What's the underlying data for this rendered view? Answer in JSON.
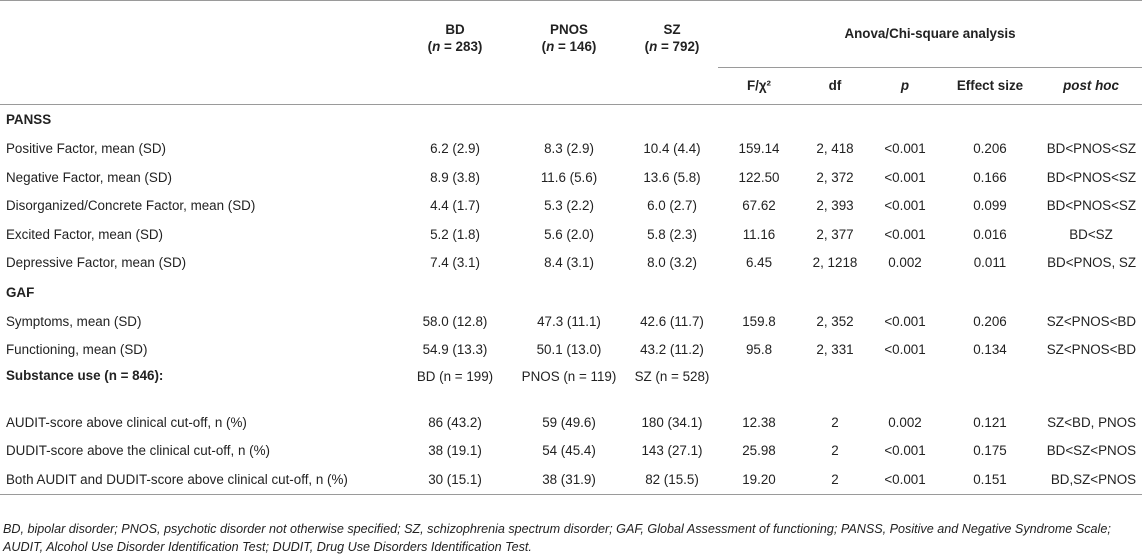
{
  "header": {
    "groups": [
      {
        "name": "BD",
        "n_label": "n",
        "n_value": " = 283)"
      },
      {
        "name": "PNOS",
        "n_label": "n",
        "n_value": " = 146)"
      },
      {
        "name": "SZ",
        "n_label": "n",
        "n_value": " = 792)"
      }
    ],
    "analysis_title": "Anova/Chi-square analysis",
    "subcols": [
      "F/χ²",
      "df",
      "p",
      "Effect size",
      "post hoc"
    ]
  },
  "sections": {
    "panss": "PANSS",
    "gaf": "GAF",
    "substance": "Substance use (n = 846):"
  },
  "panss_rows": [
    {
      "label": "Positive Factor, mean (SD)",
      "bd": "6.2 (2.9)",
      "pnos": "8.3 (2.9)",
      "sz": "10.4 (4.4)",
      "f": "159.14",
      "df": "2, 418",
      "p": "<0.001",
      "es": "0.206",
      "ph": "BD<PNOS<SZ"
    },
    {
      "label": "Negative Factor, mean (SD)",
      "bd": "8.9 (3.8)",
      "pnos": "11.6 (5.6)",
      "sz": "13.6 (5.8)",
      "f": "122.50",
      "df": "2, 372",
      "p": "<0.001",
      "es": "0.166",
      "ph": "BD<PNOS<SZ"
    },
    {
      "label": "Disorganized/Concrete Factor, mean (SD)",
      "bd": "4.4 (1.7)",
      "pnos": "5.3 (2.2)",
      "sz": "6.0 (2.7)",
      "f": "67.62",
      "df": "2, 393",
      "p": "<0.001",
      "es": "0.099",
      "ph": "BD<PNOS<SZ"
    },
    {
      "label": "Excited Factor, mean (SD)",
      "bd": "5.2 (1.8)",
      "pnos": "5.6 (2.0)",
      "sz": "5.8 (2.3)",
      "f": "11.16",
      "df": "2, 377",
      "p": "<0.001",
      "es": "0.016",
      "ph": "BD<SZ"
    },
    {
      "label": "Depressive Factor, mean (SD)",
      "bd": "7.4 (3.1)",
      "pnos": "8.4 (3.1)",
      "sz": "8.0 (3.2)",
      "f": "6.45",
      "df": "2, 1218",
      "p": "0.002",
      "es": "0.011",
      "ph": "BD<PNOS, SZ"
    }
  ],
  "gaf_rows": [
    {
      "label": "Symptoms, mean (SD)",
      "bd": "58.0 (12.8)",
      "pnos": "47.3 (11.1)",
      "sz": "42.6 (11.7)",
      "f": "159.8",
      "df": "2, 352",
      "p": "<0.001",
      "es": "0.206",
      "ph": "SZ<PNOS<BD"
    },
    {
      "label": "Functioning, mean (SD)",
      "bd": "54.9 (13.3)",
      "pnos": "50.1 (13.0)",
      "sz": "43.2 (11.2)",
      "f": "95.8",
      "df": "2, 331",
      "p": "<0.001",
      "es": "0.134",
      "ph": "SZ<PNOS<BD"
    }
  ],
  "substance_groups": {
    "bd": "BD (n = 199)",
    "pnos": "PNOS (n = 119)",
    "sz": "SZ (n = 528)"
  },
  "substance_rows": [
    {
      "label": "AUDIT-score above clinical cut-off, n (%)",
      "bd": "86 (43.2)",
      "pnos": "59 (49.6)",
      "sz": "180 (34.1)",
      "f": "12.38",
      "df": "2",
      "p": "0.002",
      "es": "0.121",
      "ph": "SZ<BD, PNOS"
    },
    {
      "label": "DUDIT-score above the clinical cut-off, n (%)",
      "bd": "38 (19.1)",
      "pnos": "54 (45.4)",
      "sz": "143 (27.1)",
      "f": "25.98",
      "df": "2",
      "p": "<0.001",
      "es": "0.175",
      "ph": "BD<SZ<PNOS"
    },
    {
      "label": "Both AUDIT and DUDIT-score above clinical cut-off, n (%)",
      "bd": "30 (15.1)",
      "pnos": "38 (31.9)",
      "sz": "82 (15.5)",
      "f": "19.20",
      "df": "2",
      "p": "<0.001",
      "es": "0.151",
      "ph": "BD,SZ<PNOS"
    }
  ],
  "footnote": "BD, bipolar disorder; PNOS, psychotic disorder not otherwise specified; SZ, schizophrenia spectrum disorder; GAF, Global Assessment of functioning; PANSS, Positive and Negative Syndrome Scale; AUDIT, Alcohol Use Disorder Identification Test; DUDIT, Drug Use Disorders Identification Test."
}
